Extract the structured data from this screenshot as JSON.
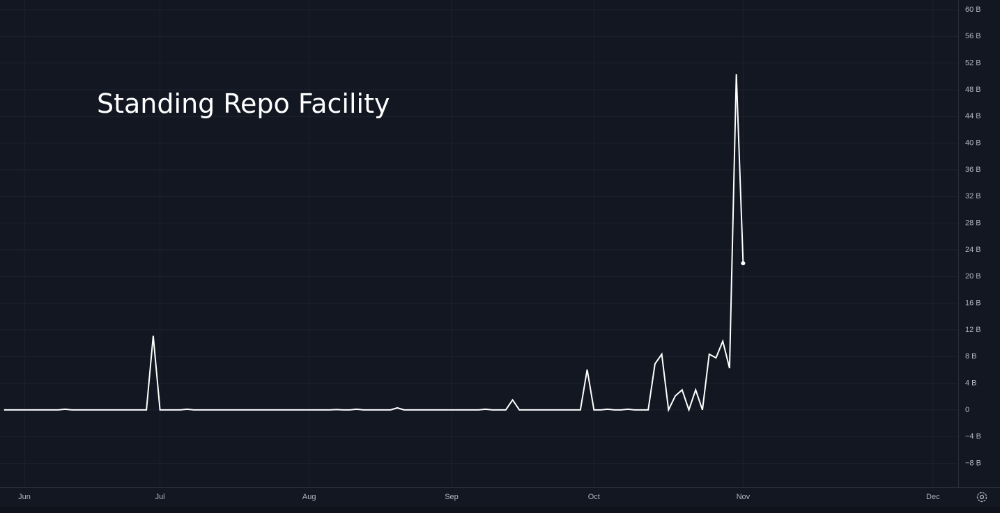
{
  "chart_data": {
    "type": "line",
    "annotation": "Standing Repo Facility",
    "categories": [
      null,
      null,
      null,
      "Jun",
      null,
      null,
      null,
      null,
      null,
      null,
      null,
      null,
      null,
      null,
      null,
      null,
      null,
      null,
      null,
      null,
      null,
      null,
      null,
      "Jul",
      null,
      null,
      null,
      null,
      null,
      null,
      null,
      null,
      null,
      null,
      null,
      null,
      null,
      null,
      null,
      null,
      null,
      null,
      null,
      null,
      null,
      "Aug",
      null,
      null,
      null,
      null,
      null,
      null,
      null,
      null,
      null,
      null,
      null,
      null,
      null,
      null,
      null,
      null,
      null,
      null,
      null,
      null,
      "Sep",
      null,
      null,
      null,
      null,
      null,
      null,
      null,
      null,
      null,
      null,
      null,
      null,
      null,
      null,
      null,
      null,
      null,
      null,
      null,
      null,
      "Oct",
      null,
      null,
      null,
      null,
      null,
      null,
      null,
      null,
      null,
      null,
      null,
      null,
      null,
      null,
      null,
      null,
      null,
      null,
      null,
      null,
      null,
      "Nov",
      null,
      null,
      null,
      null,
      null,
      null,
      null,
      null,
      null,
      null,
      null,
      null,
      null,
      null,
      null,
      null,
      null,
      null,
      null,
      null,
      null,
      null,
      null,
      null,
      null,
      null,
      null,
      "Dec"
    ],
    "series": [
      {
        "color": "#ffffff",
        "values": [
          0,
          0,
          0,
          0,
          0,
          0,
          0,
          0,
          0,
          0.1,
          0,
          0,
          0,
          0,
          0,
          0,
          0,
          0,
          0,
          0,
          0,
          0,
          11.1,
          0,
          0,
          0,
          0,
          0.1,
          0,
          0,
          0,
          0,
          0,
          0,
          0,
          0,
          0,
          0,
          0,
          0,
          0,
          0,
          0,
          0,
          0,
          0,
          0,
          0,
          0,
          0.05,
          0,
          0,
          0.1,
          0,
          0,
          0,
          0,
          0,
          0.3,
          0,
          0,
          0,
          0,
          0,
          0,
          0,
          0,
          0,
          0,
          0,
          0,
          0.1,
          0,
          0,
          0,
          1.5,
          0,
          0,
          0,
          0,
          0,
          0,
          0,
          0,
          0,
          0,
          6.05,
          0,
          0,
          0.1,
          0,
          0,
          0.1,
          0,
          0,
          0,
          6.9,
          8.35,
          0,
          2.1,
          3,
          0,
          3,
          0,
          8.35,
          7.8,
          10.3,
          6.25,
          50.35,
          22,
          null,
          null,
          null,
          null,
          null,
          null,
          null,
          null,
          null,
          null,
          null,
          null,
          null,
          null,
          null,
          null,
          null,
          null,
          null,
          null,
          null,
          null,
          null,
          null,
          null,
          null,
          null,
          null
        ]
      }
    ],
    "ylim": [
      -11.6,
      61.46
    ],
    "yticks": [
      {
        "value": 60,
        "label": "60 B"
      },
      {
        "value": 56,
        "label": "56 B"
      },
      {
        "value": 52,
        "label": "52 B"
      },
      {
        "value": 48,
        "label": "48 B"
      },
      {
        "value": 44,
        "label": "44 B"
      },
      {
        "value": 40,
        "label": "40 B"
      },
      {
        "value": 36,
        "label": "36 B"
      },
      {
        "value": 32,
        "label": "32 B"
      },
      {
        "value": 28,
        "label": "28 B"
      },
      {
        "value": 24,
        "label": "24 B"
      },
      {
        "value": 20,
        "label": "20 B"
      },
      {
        "value": 16,
        "label": "16 B"
      },
      {
        "value": 12,
        "label": "12 B"
      },
      {
        "value": 8,
        "label": "8 B"
      },
      {
        "value": 4,
        "label": "4 B"
      },
      0,
      {
        "value": -4,
        "label": "−4 B"
      },
      {
        "value": -8,
        "label": "−8 B"
      }
    ],
    "grid": true
  }
}
